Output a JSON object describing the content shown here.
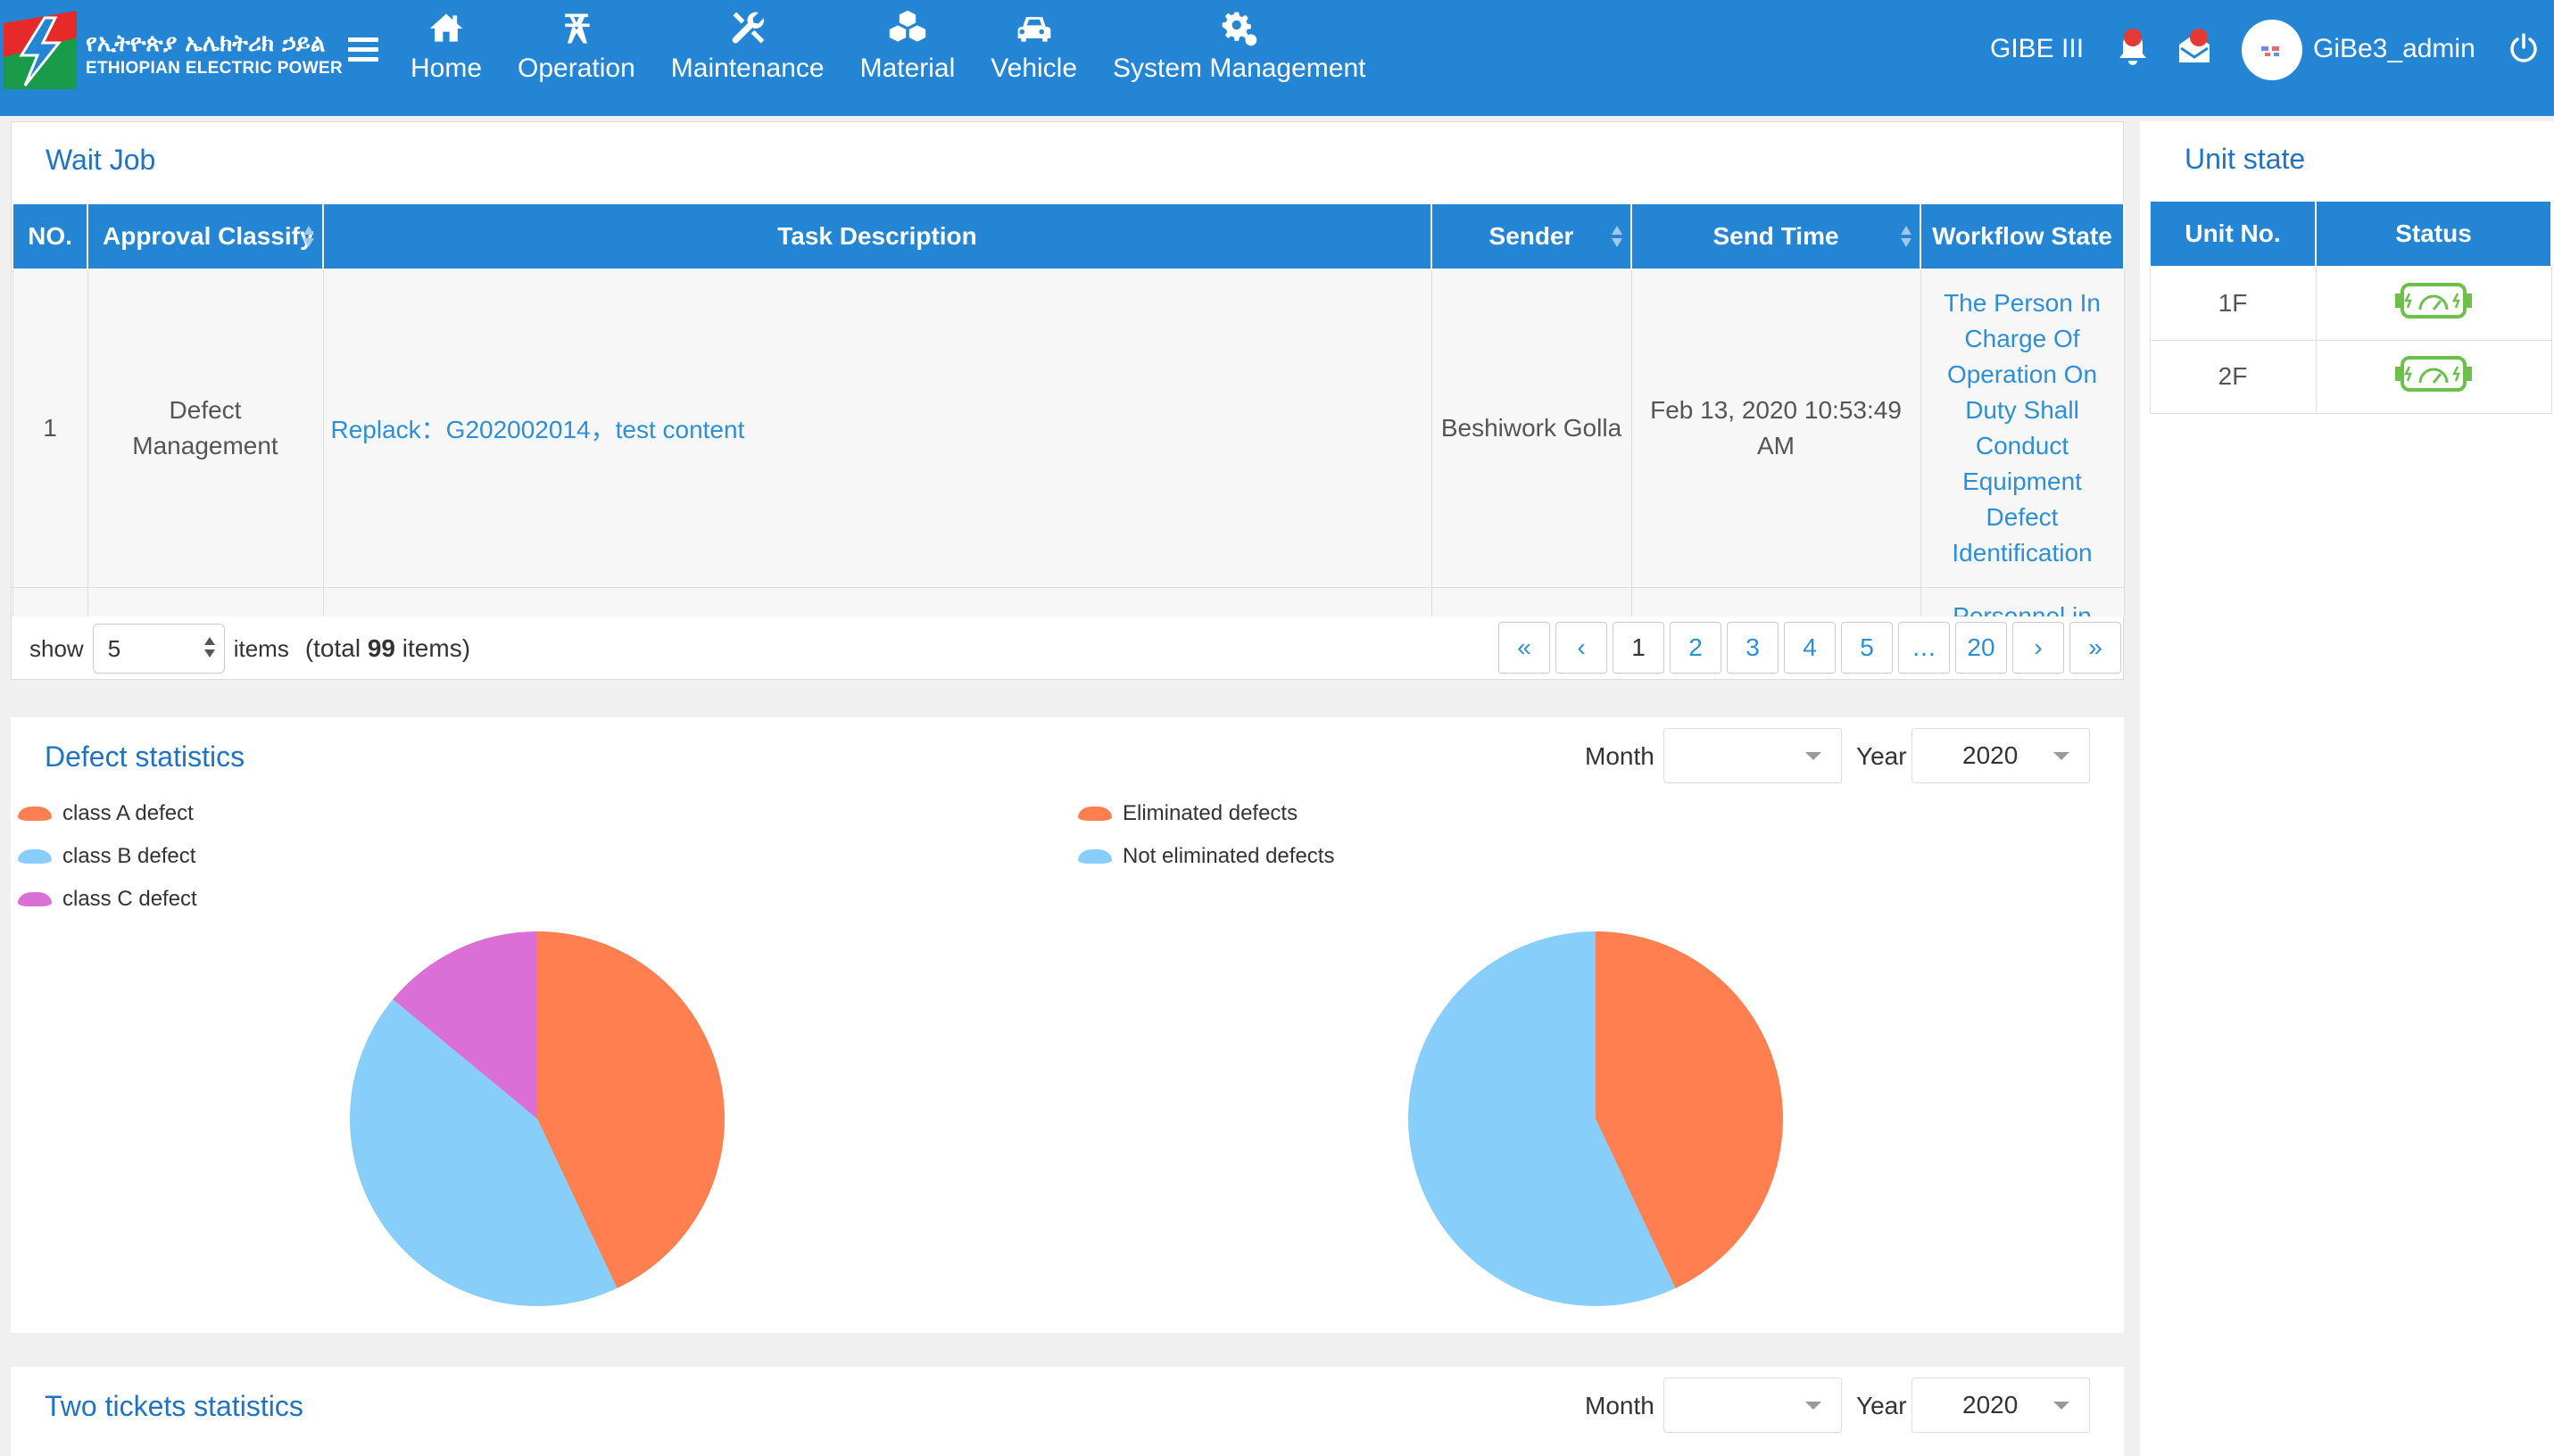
{
  "header": {
    "logo_amharic": "የኢትዮጵያ ኤሌክትሪክ ኃይል",
    "logo_english": "ETHIOPIAN ELECTRIC POWER",
    "nav": [
      {
        "label": "Home",
        "icon": "home-icon"
      },
      {
        "label": "Operation",
        "icon": "tower-icon"
      },
      {
        "label": "Maintenance",
        "icon": "tools-icon"
      },
      {
        "label": "Material",
        "icon": "cubes-icon"
      },
      {
        "label": "Vehicle",
        "icon": "car-icon"
      },
      {
        "label": "System Management",
        "icon": "gears-icon"
      }
    ],
    "station": "GIBE III",
    "username": "GiBe3_admin"
  },
  "wait_job": {
    "title": "Wait Job",
    "columns": [
      "NO.",
      "Approval Classify",
      "Task Description",
      "Sender",
      "Send Time",
      "Workflow State"
    ],
    "rows": [
      {
        "no": "1",
        "classify": "Defect Management",
        "task": "Replack：G202002014，test content",
        "sender": "Beshiwork Golla",
        "send_time": "Feb 13, 2020 10:53:49 AM",
        "state": "The Person In Charge Of Operation On Duty Shall Conduct Equipment Defect Identification"
      },
      {
        "no": "",
        "classify": "",
        "task": "",
        "sender": "",
        "send_time": "",
        "state": "Personnel in"
      }
    ],
    "pager": {
      "show_label": "show",
      "page_size": "5",
      "items_label": "items",
      "total_prefix": "(total",
      "total_count": "99",
      "total_suffix": "items)",
      "pages": [
        "«",
        "‹",
        "1",
        "2",
        "3",
        "4",
        "5",
        "…",
        "20",
        "›",
        "»"
      ],
      "current": "1"
    }
  },
  "unit_state": {
    "title": "Unit state",
    "columns": [
      "Unit No.",
      "Status"
    ],
    "rows": [
      {
        "unit": "1F",
        "status_icon": "generator-running-icon"
      },
      {
        "unit": "2F",
        "status_icon": "generator-running-icon"
      }
    ],
    "status_color": "#6cc04a"
  },
  "defect_statistics": {
    "title": "Defect statistics",
    "month_label": "Month",
    "month_value": "",
    "year_label": "Year",
    "year_value": "2020"
  },
  "two_tickets": {
    "title": "Two tickets statistics",
    "month_label": "Month",
    "month_value": "",
    "year_label": "Year",
    "year_value": "2020"
  },
  "colors": {
    "header": "#2385d4",
    "orange": "#ff7f50",
    "blue": "#87cefa",
    "violet": "#da70d6"
  },
  "chart_data": [
    {
      "type": "pie",
      "legend": [
        "class A defect",
        "class B defect",
        "class C defect"
      ],
      "legend_placement": "top-left",
      "series": [
        {
          "name": "class A defect",
          "value": 43,
          "color": "#ff7f50"
        },
        {
          "name": "class B defect",
          "value": 43,
          "color": "#87cefa"
        },
        {
          "name": "class C defect",
          "value": 14,
          "color": "#da70d6"
        }
      ]
    },
    {
      "type": "pie",
      "legend": [
        "Eliminated defects",
        "Not eliminated defects"
      ],
      "legend_placement": "top-left",
      "series": [
        {
          "name": "Eliminated defects",
          "value": 43,
          "color": "#ff7f50"
        },
        {
          "name": "Not eliminated defects",
          "value": 57,
          "color": "#87cefa"
        }
      ]
    }
  ]
}
